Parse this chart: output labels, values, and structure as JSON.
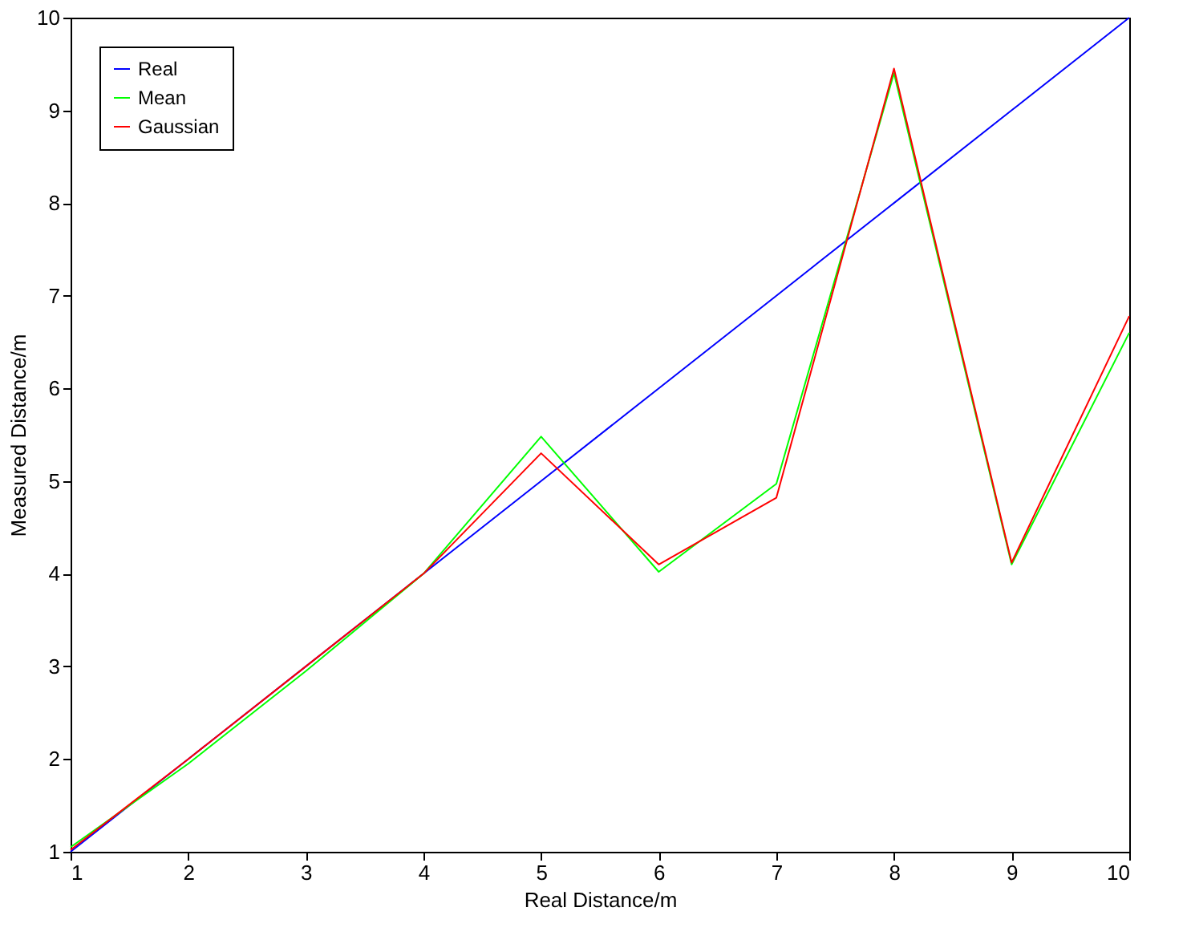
{
  "chart_data": {
    "type": "line",
    "xlabel": "Real Distance/m",
    "ylabel": "Measured Distance/m",
    "x": [
      1,
      2,
      3,
      4,
      5,
      6,
      7,
      8,
      9,
      10
    ],
    "series": [
      {
        "name": "Real",
        "color": "#0000ff",
        "values": [
          1,
          2,
          3,
          4,
          5,
          6,
          7,
          8,
          9,
          10
        ]
      },
      {
        "name": "Mean",
        "color": "#00ff00",
        "values": [
          1.05,
          1.95,
          2.95,
          4.0,
          5.48,
          4.02,
          4.97,
          9.4,
          4.1,
          6.6
        ]
      },
      {
        "name": "Gaussian",
        "color": "#ff0000",
        "values": [
          1.02,
          2.0,
          3.0,
          4.0,
          5.3,
          4.1,
          4.82,
          9.45,
          4.12,
          6.78
        ]
      }
    ],
    "xlim": [
      1,
      10
    ],
    "ylim": [
      1,
      10
    ],
    "xticks": [
      1,
      2,
      3,
      4,
      5,
      6,
      7,
      8,
      9,
      10
    ],
    "yticks": [
      1,
      2,
      3,
      4,
      5,
      6,
      7,
      8,
      9,
      10
    ],
    "grid": false,
    "legend": "top left",
    "marker": "none",
    "line_style": "solid"
  }
}
